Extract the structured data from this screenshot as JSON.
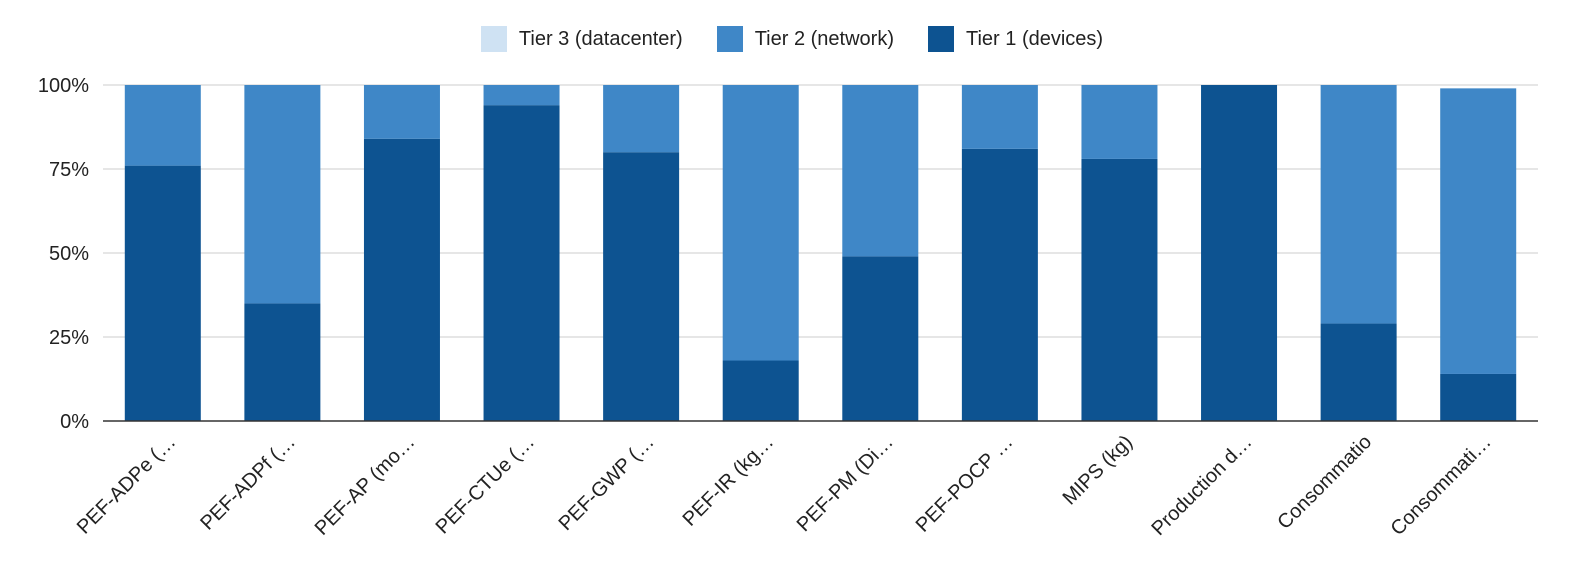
{
  "chart_data": {
    "type": "bar",
    "stacked": true,
    "normalized": true,
    "categories": [
      "PEF-ADPe (…",
      "PEF-ADPf (…",
      "PEF-AP (mo…",
      "PEF-CTUe (…",
      "PEF-GWP (…",
      "PEF-IR (kg…",
      "PEF-PM (Di…",
      "PEF-POCP …",
      "MIPS (kg)",
      "Production d…",
      "Consommatio",
      "Consommati…"
    ],
    "series": [
      {
        "name": "Tier 1 (devices)",
        "color": "#0d5391",
        "values": [
          0.76,
          0.35,
          0.84,
          0.94,
          0.8,
          0.18,
          0.49,
          0.81,
          0.78,
          1.0,
          0.29,
          0.14
        ]
      },
      {
        "name": "Tier 2 (network)",
        "color": "#3f87c7",
        "values": [
          0.24,
          0.65,
          0.16,
          0.06,
          0.2,
          0.82,
          0.51,
          0.19,
          0.22,
          0.0,
          0.71,
          0.85
        ]
      },
      {
        "name": "Tier 3 (datacenter)",
        "color": "#cfe2f3",
        "values": [
          0,
          0,
          0,
          0,
          0,
          0,
          0,
          0,
          0,
          0,
          0,
          0
        ]
      }
    ],
    "legend_order": [
      "Tier 3 (datacenter)",
      "Tier 2 (network)",
      "Tier 1 (devices)"
    ],
    "legend_position": "top",
    "ylim": [
      0,
      1
    ],
    "yticks": [
      "0%",
      "25%",
      "50%",
      "75%",
      "100%"
    ],
    "grid": true,
    "title": "",
    "xlabel": "",
    "ylabel": ""
  }
}
